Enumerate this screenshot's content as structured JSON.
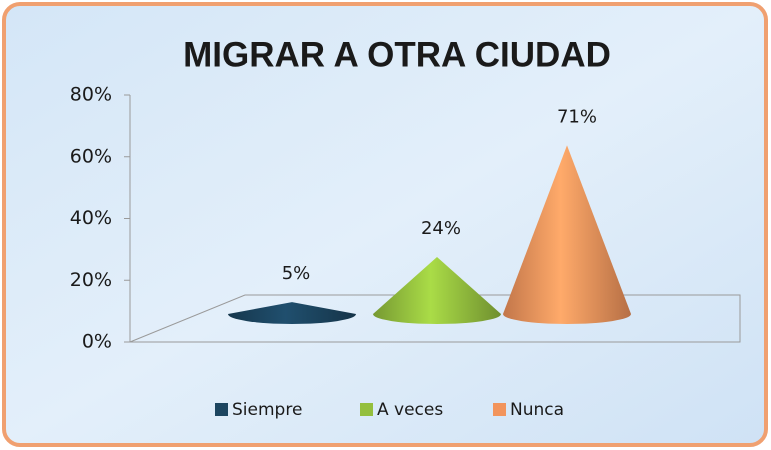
{
  "chart_data": {
    "type": "cone3d",
    "title": "MIGRAR A OTRA CIUDAD",
    "categories": [
      "Siempre",
      "A veces",
      "Nunca"
    ],
    "series": [
      {
        "name": null,
        "values": [
          5,
          24,
          71
        ],
        "value_labels": [
          "5%",
          "24%",
          "71%"
        ],
        "colors": [
          "#1c4560",
          "#94bf3e",
          "#f2945c"
        ]
      }
    ],
    "ylim": [
      0,
      80
    ],
    "yticks": [
      {
        "value": 0,
        "label": "0%"
      },
      {
        "value": 20,
        "label": "20%"
      },
      {
        "value": 40,
        "label": "40%"
      },
      {
        "value": 60,
        "label": "60%"
      },
      {
        "value": 80,
        "label": "80%"
      }
    ],
    "legend": "bottom"
  }
}
